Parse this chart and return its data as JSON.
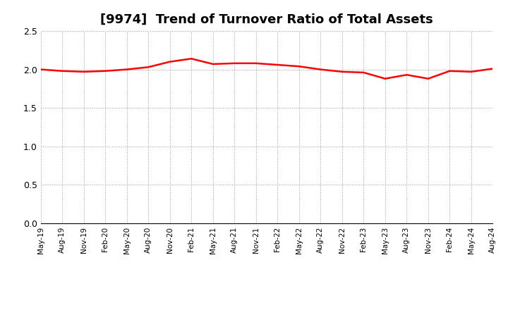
{
  "title": "[9974]  Trend of Turnover Ratio of Total Assets",
  "title_fontsize": 13,
  "line_color": "#FF0000",
  "line_width": 1.8,
  "background_color": "#FFFFFF",
  "grid_color": "#999999",
  "ylim": [
    0.0,
    2.5
  ],
  "yticks": [
    0.0,
    0.5,
    1.0,
    1.5,
    2.0,
    2.5
  ],
  "values": [
    2.0,
    1.98,
    1.97,
    1.98,
    2.0,
    2.03,
    2.1,
    2.14,
    2.07,
    2.08,
    2.08,
    2.06,
    2.04,
    2.0,
    1.97,
    1.96,
    1.88,
    1.93,
    1.88,
    1.98,
    1.97,
    2.01
  ],
  "xtick_labels": [
    "May-19",
    "Aug-19",
    "Nov-19",
    "Feb-20",
    "May-20",
    "Aug-20",
    "Nov-20",
    "Feb-21",
    "May-21",
    "Aug-21",
    "Nov-21",
    "Feb-22",
    "May-22",
    "Aug-22",
    "Nov-22",
    "Feb-23",
    "May-23",
    "Aug-23",
    "Nov-23",
    "Feb-24",
    "May-24",
    "Aug-24"
  ]
}
